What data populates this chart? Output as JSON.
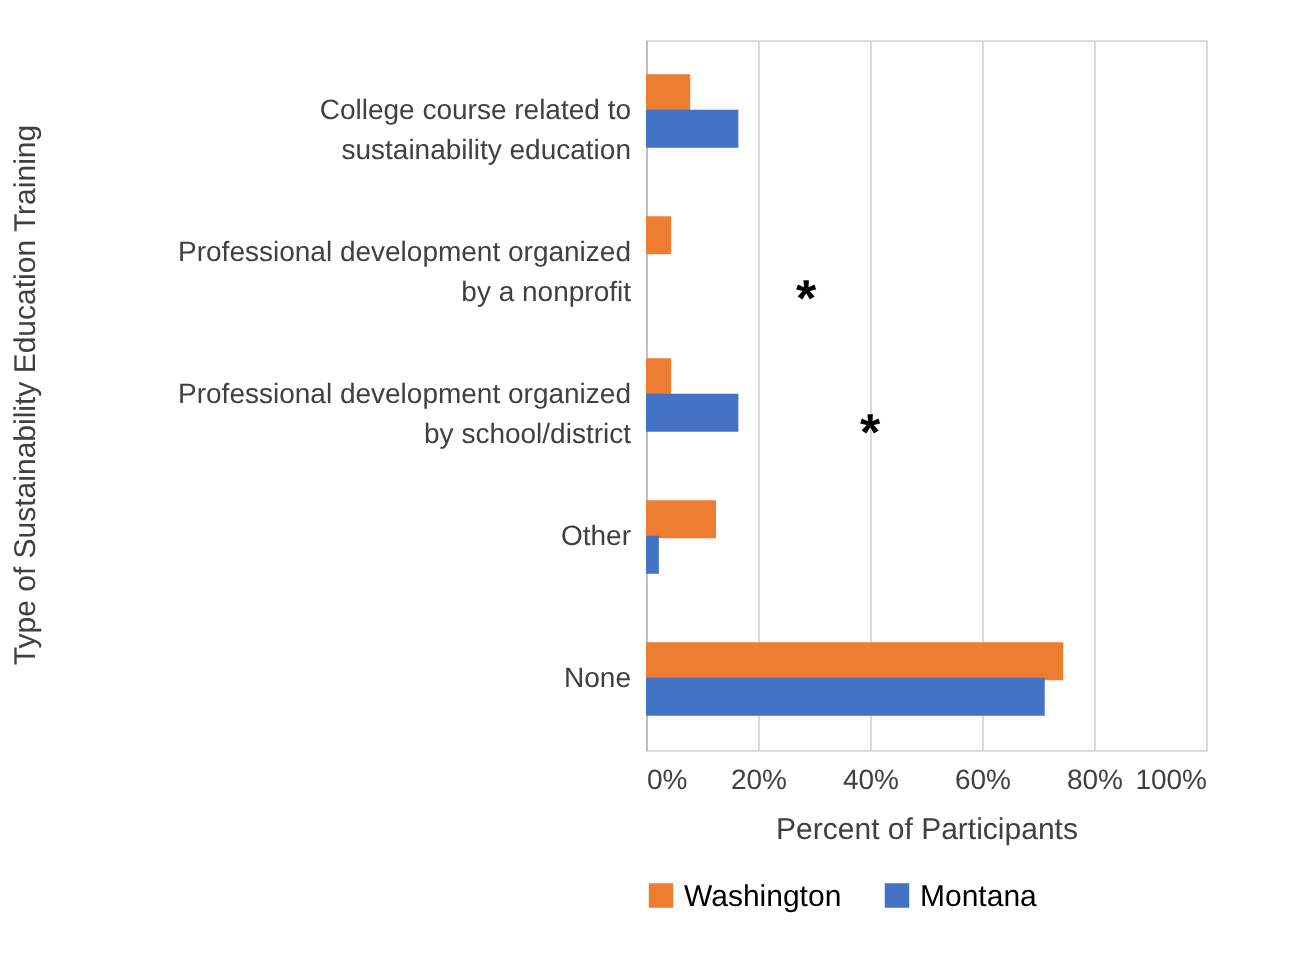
{
  "chart_data": {
    "type": "bar",
    "orientation": "horizontal",
    "ylabel": "Type of Sustainability Education Training",
    "xlabel": "Percent of Participants",
    "categories": [
      "College course related to sustainability education",
      "Professional development organized by a nonprofit",
      "Professional development organized by school/district",
      "Other",
      "None"
    ],
    "series": [
      {
        "name": "Washington",
        "color": "#ed7d31",
        "values": [
          7.9,
          4.5,
          4.5,
          12.5,
          74.5
        ]
      },
      {
        "name": "Montana",
        "color": "#4472c4",
        "values": [
          16.5,
          0,
          16.5,
          2.3,
          71.2
        ]
      }
    ],
    "xlim": [
      0,
      100
    ],
    "xticks": [
      {
        "value": 0,
        "label": "0%"
      },
      {
        "value": 20,
        "label": "20%"
      },
      {
        "value": 40,
        "label": "40%"
      },
      {
        "value": 60,
        "label": "60%"
      },
      {
        "value": 80,
        "label": "80%"
      },
      {
        "value": 100,
        "label": "100%"
      }
    ],
    "grid": "x",
    "legend": "bottom",
    "annotations": [
      "*",
      "*"
    ]
  }
}
